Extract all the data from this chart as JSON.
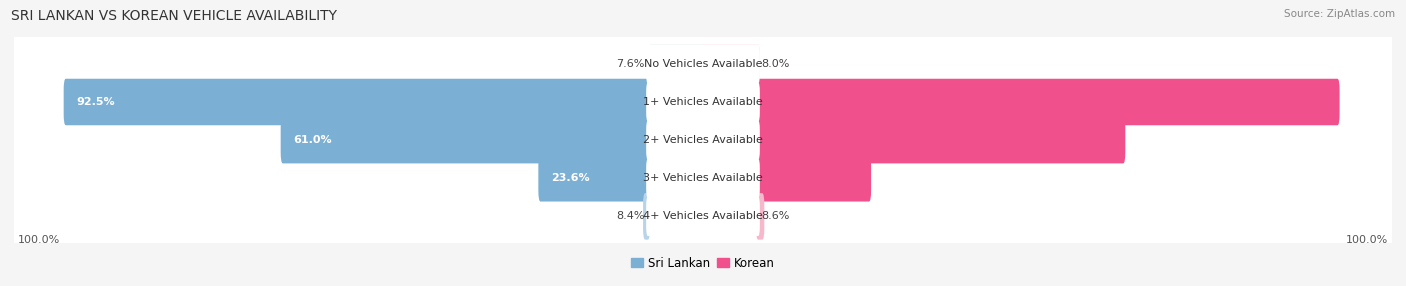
{
  "title": "SRI LANKAN VS KOREAN VEHICLE AVAILABILITY",
  "source": "Source: ZipAtlas.com",
  "categories": [
    "No Vehicles Available",
    "1+ Vehicles Available",
    "2+ Vehicles Available",
    "3+ Vehicles Available",
    "4+ Vehicles Available"
  ],
  "sri_lankan": [
    7.6,
    92.5,
    61.0,
    23.6,
    8.4
  ],
  "korean": [
    8.0,
    92.1,
    61.0,
    24.1,
    8.6
  ],
  "max_val": 100.0,
  "sri_lankan_color": "#7BAFD4",
  "sri_lankan_color_light": "#B8D4E8",
  "korean_color": "#F0508C",
  "korean_color_light": "#F8B8CC",
  "bg_color": "#f5f5f5",
  "row_bg_color": "#ebebeb",
  "title_fontsize": 10,
  "bar_label_fontsize": 8,
  "cat_label_fontsize": 8,
  "legend_fontsize": 8.5,
  "source_fontsize": 7.5
}
